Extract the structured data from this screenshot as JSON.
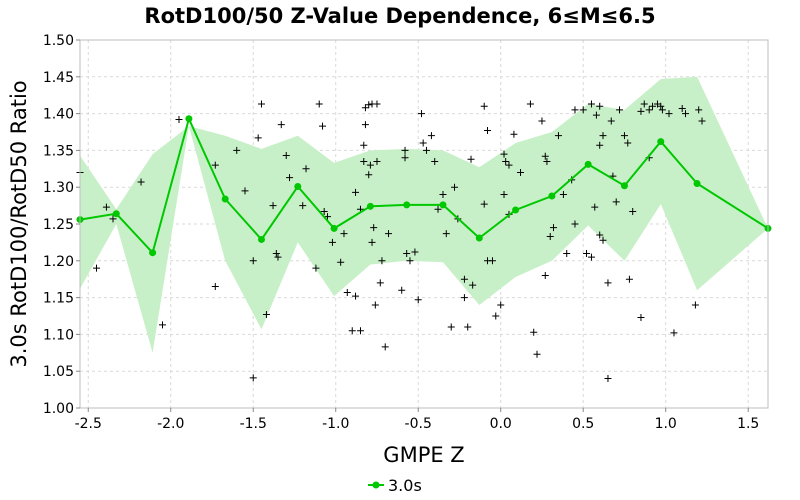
{
  "chart_data": {
    "type": "line",
    "title": "RotD100/50 Z-Value Dependence, 6≤M≤6.5",
    "xlabel": "GMPE Z",
    "ylabel": "3.0s RotD100/RotD50 Ratio",
    "xlim": [
      -2.55,
      1.62
    ],
    "ylim": [
      1.0,
      1.5
    ],
    "x_ticks": [
      "-2.5",
      "-2.0",
      "-1.5",
      "-1.0",
      "-0.5",
      "0.0",
      "0.5",
      "1.0",
      "1.5"
    ],
    "y_ticks": [
      "1.00",
      "1.05",
      "1.10",
      "1.15",
      "1.20",
      "1.25",
      "1.30",
      "1.35",
      "1.40",
      "1.45",
      "1.50"
    ],
    "grid": true,
    "legend_position": "bottom-center",
    "series": [
      {
        "name": "3.0s",
        "color": "#00c800",
        "x": [
          -2.55,
          -2.33,
          -2.11,
          -1.89,
          -1.67,
          -1.45,
          -1.23,
          -1.01,
          -0.79,
          -0.57,
          -0.35,
          -0.13,
          0.09,
          0.31,
          0.53,
          0.75,
          0.97,
          1.19,
          1.62
        ],
        "y": [
          1.256,
          1.264,
          1.211,
          1.393,
          1.284,
          1.229,
          1.301,
          1.244,
          1.274,
          1.276,
          1.276,
          1.231,
          1.269,
          1.288,
          1.331,
          1.302,
          1.362,
          1.305,
          1.244
        ]
      }
    ],
    "band": {
      "color": "#c8f0c8",
      "upper": [
        1.343,
        1.27,
        1.345,
        1.383,
        1.37,
        1.352,
        1.37,
        1.333,
        1.35,
        1.352,
        1.35,
        1.327,
        1.36,
        1.375,
        1.413,
        1.405,
        1.447,
        1.45,
        1.244
      ],
      "lower": [
        1.162,
        1.25,
        1.075,
        1.383,
        1.2,
        1.107,
        1.225,
        1.152,
        1.195,
        1.2,
        1.198,
        1.14,
        1.178,
        1.2,
        1.248,
        1.2,
        1.277,
        1.16,
        1.244
      ]
    },
    "scatter_points": [
      [
        -2.55,
        1.32
      ],
      [
        -2.45,
        1.19
      ],
      [
        -2.39,
        1.273
      ],
      [
        -2.35,
        1.257
      ],
      [
        -2.18,
        1.307
      ],
      [
        -2.05,
        1.113
      ],
      [
        -1.95,
        1.392
      ],
      [
        -1.73,
        1.33
      ],
      [
        -1.73,
        1.165
      ],
      [
        -1.6,
        1.35
      ],
      [
        -1.55,
        1.295
      ],
      [
        -1.5,
        1.2
      ],
      [
        -1.45,
        1.413
      ],
      [
        -1.47,
        1.367
      ],
      [
        -1.42,
        1.127
      ],
      [
        -1.5,
        1.041
      ],
      [
        -1.38,
        1.275
      ],
      [
        -1.36,
        1.21
      ],
      [
        -1.35,
        1.205
      ],
      [
        -1.33,
        1.385
      ],
      [
        -1.3,
        1.343
      ],
      [
        -1.28,
        1.313
      ],
      [
        -1.2,
        1.275
      ],
      [
        -1.18,
        1.325
      ],
      [
        -1.12,
        1.19
      ],
      [
        -1.1,
        1.413
      ],
      [
        -1.08,
        1.383
      ],
      [
        -1.07,
        1.267
      ],
      [
        -1.05,
        1.26
      ],
      [
        -1.02,
        1.225
      ],
      [
        -0.97,
        1.198
      ],
      [
        -0.95,
        1.237
      ],
      [
        -0.93,
        1.157
      ],
      [
        -0.9,
        1.105
      ],
      [
        -0.88,
        1.152
      ],
      [
        -0.85,
        1.27
      ],
      [
        -0.82,
        1.385
      ],
      [
        -0.83,
        1.357
      ],
      [
        -0.83,
        1.335
      ],
      [
        -0.8,
        1.317
      ],
      [
        -0.79,
        1.33
      ],
      [
        -0.78,
        1.225
      ],
      [
        -0.77,
        1.245
      ],
      [
        -0.76,
        1.14
      ],
      [
        -0.73,
        1.17
      ],
      [
        -0.7,
        1.083
      ],
      [
        -0.72,
        1.2
      ],
      [
        -0.68,
        1.237
      ],
      [
        -0.82,
        1.408
      ],
      [
        -0.8,
        1.412
      ],
      [
        -0.78,
        1.413
      ],
      [
        -0.75,
        1.413
      ],
      [
        -0.88,
        1.293
      ],
      [
        -0.85,
        1.105
      ],
      [
        -0.75,
        1.335
      ],
      [
        -0.6,
        1.16
      ],
      [
        -0.58,
        1.35
      ],
      [
        -0.58,
        1.34
      ],
      [
        -0.57,
        1.21
      ],
      [
        -0.55,
        1.2
      ],
      [
        -0.52,
        1.212
      ],
      [
        -0.5,
        1.147
      ],
      [
        -0.48,
        1.4
      ],
      [
        -0.47,
        1.36
      ],
      [
        -0.45,
        1.35
      ],
      [
        -0.42,
        1.37
      ],
      [
        -0.4,
        1.335
      ],
      [
        -0.38,
        1.27
      ],
      [
        -0.35,
        1.29
      ],
      [
        -0.33,
        1.237
      ],
      [
        -0.3,
        1.11
      ],
      [
        -0.28,
        1.3
      ],
      [
        -0.26,
        1.257
      ],
      [
        -0.22,
        1.15
      ],
      [
        -0.22,
        1.175
      ],
      [
        -0.2,
        1.11
      ],
      [
        -0.18,
        1.338
      ],
      [
        -0.17,
        1.167
      ],
      [
        -0.1,
        1.41
      ],
      [
        -0.08,
        1.377
      ],
      [
        -0.1,
        1.277
      ],
      [
        -0.08,
        1.2
      ],
      [
        -0.05,
        1.2
      ],
      [
        -0.03,
        1.125
      ],
      [
        0.0,
        1.14
      ],
      [
        0.02,
        1.345
      ],
      [
        0.03,
        1.335
      ],
      [
        0.05,
        1.33
      ],
      [
        0.02,
        1.29
      ],
      [
        0.05,
        1.263
      ],
      [
        0.08,
        1.372
      ],
      [
        0.12,
        1.32
      ],
      [
        0.18,
        1.413
      ],
      [
        0.2,
        1.103
      ],
      [
        0.22,
        1.073
      ],
      [
        0.25,
        1.39
      ],
      [
        0.27,
        1.342
      ],
      [
        0.28,
        1.335
      ],
      [
        0.27,
        1.18
      ],
      [
        0.3,
        1.233
      ],
      [
        0.32,
        1.245
      ],
      [
        0.35,
        1.37
      ],
      [
        0.38,
        1.29
      ],
      [
        0.4,
        1.21
      ],
      [
        0.43,
        1.31
      ],
      [
        0.45,
        1.405
      ],
      [
        0.45,
        1.25
      ],
      [
        0.5,
        1.405
      ],
      [
        0.52,
        1.21
      ],
      [
        0.55,
        1.413
      ],
      [
        0.58,
        1.398
      ],
      [
        0.57,
        1.273
      ],
      [
        0.6,
        1.41
      ],
      [
        0.62,
        1.37
      ],
      [
        0.6,
        1.357
      ],
      [
        0.6,
        1.235
      ],
      [
        0.62,
        1.228
      ],
      [
        0.65,
        1.04
      ],
      [
        0.67,
        1.39
      ],
      [
        0.68,
        1.315
      ],
      [
        0.7,
        1.28
      ],
      [
        0.72,
        1.405
      ],
      [
        0.75,
        1.37
      ],
      [
        0.77,
        1.36
      ],
      [
        0.78,
        1.175
      ],
      [
        0.8,
        1.267
      ],
      [
        0.85,
        1.403
      ],
      [
        0.87,
        1.413
      ],
      [
        0.9,
        1.405
      ],
      [
        0.92,
        1.41
      ],
      [
        0.95,
        1.413
      ],
      [
        0.97,
        1.41
      ],
      [
        0.98,
        1.405
      ],
      [
        1.02,
        1.4
      ],
      [
        1.05,
        1.102
      ],
      [
        1.1,
        1.407
      ],
      [
        1.12,
        1.4
      ],
      [
        1.18,
        1.14
      ],
      [
        1.2,
        1.405
      ],
      [
        1.22,
        1.39
      ],
      [
        0.85,
        1.123
      ],
      [
        0.9,
        1.34
      ],
      [
        0.65,
        1.17
      ],
      [
        0.55,
        1.205
      ]
    ]
  }
}
